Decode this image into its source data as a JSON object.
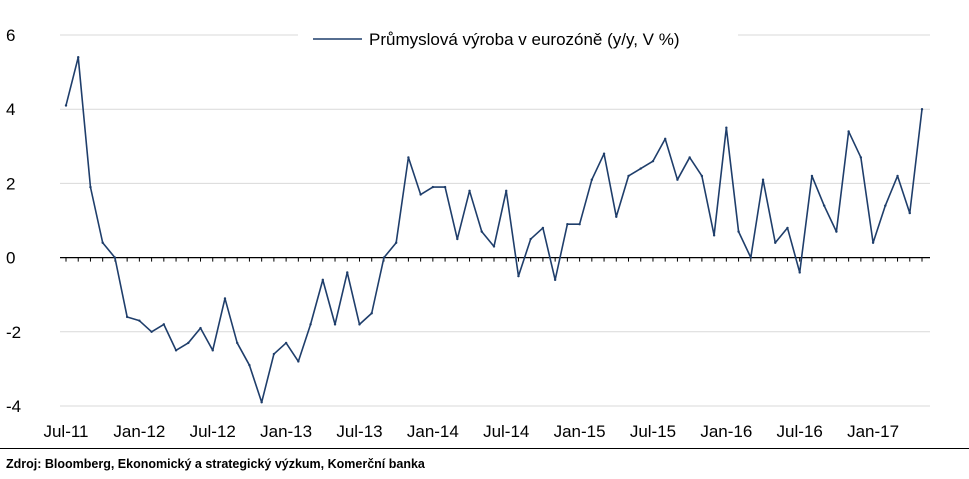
{
  "chart_data": {
    "type": "line",
    "legend": {
      "position": "top-center"
    },
    "series": [
      {
        "name": "Průmyslová výroba v eurozóně (y/y, V %)",
        "color": "#1f3e6b",
        "values": [
          4.1,
          5.4,
          1.9,
          0.4,
          0.0,
          -1.6,
          -1.7,
          -2.0,
          -1.8,
          -2.5,
          -2.3,
          -1.9,
          -2.5,
          -1.1,
          -2.3,
          -2.9,
          -3.9,
          -2.6,
          -2.3,
          -2.8,
          -1.8,
          -0.6,
          -1.8,
          -0.4,
          -1.8,
          -1.5,
          0.0,
          0.4,
          2.7,
          1.7,
          1.9,
          1.9,
          0.5,
          1.8,
          0.7,
          0.3,
          1.8,
          -0.5,
          0.5,
          0.8,
          -0.6,
          0.9,
          0.9,
          2.1,
          2.8,
          1.1,
          2.2,
          2.4,
          2.6,
          3.2,
          2.1,
          2.7,
          2.2,
          0.6,
          3.5,
          0.7,
          0.0,
          2.1,
          0.4,
          0.8,
          -0.4,
          2.2,
          1.4,
          0.7,
          3.4,
          2.7,
          0.4,
          1.4,
          2.2,
          1.2,
          4.0
        ]
      }
    ],
    "x_ticks": [
      {
        "label": "Jul-11",
        "index": 0
      },
      {
        "label": "Jan-12",
        "index": 6
      },
      {
        "label": "Jul-12",
        "index": 12
      },
      {
        "label": "Jan-13",
        "index": 18
      },
      {
        "label": "Jul-13",
        "index": 24
      },
      {
        "label": "Jan-14",
        "index": 30
      },
      {
        "label": "Jul-14",
        "index": 36
      },
      {
        "label": "Jan-15",
        "index": 42
      },
      {
        "label": "Jul-15",
        "index": 48
      },
      {
        "label": "Jan-16",
        "index": 54
      },
      {
        "label": "Jul-16",
        "index": 60
      },
      {
        "label": "Jan-17",
        "index": 66
      }
    ],
    "y_ticks": [
      6,
      4,
      2,
      0,
      -2,
      -4
    ],
    "ylim": [
      -4,
      6
    ],
    "grid": true
  },
  "source": "Zdroj: Bloomberg, Ekonomický a strategický výzkum, Komerční banka"
}
